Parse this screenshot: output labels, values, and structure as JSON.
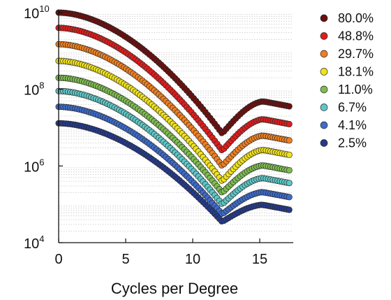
{
  "chart_data": {
    "type": "scatter",
    "title": "",
    "xlabel": "Cycles per Degree",
    "ylabel": "",
    "xlim": [
      0,
      17.5
    ],
    "ylim": [
      10000,
      10000000000
    ],
    "yscale": "log",
    "x_ticks": [
      "0",
      "5",
      "10",
      "15"
    ],
    "y_ticks": [
      {
        "base": "10",
        "exp": "4"
      },
      {
        "base": "10",
        "exp": "6"
      },
      {
        "base": "10",
        "exp": "8"
      },
      {
        "base": "10",
        "exp": "10"
      }
    ],
    "grid": "y-minor-dotted",
    "legend_position": "right",
    "series": [
      {
        "name": "80.0%",
        "color": "#6b0f0f",
        "start": 10000000000.0,
        "dip": 7000000.0,
        "end": 35000000.0
      },
      {
        "name": "48.8%",
        "color": "#e01c1c",
        "start": 4000000000.0,
        "dip": 2500000.0,
        "end": 12000000.0
      },
      {
        "name": "29.7%",
        "color": "#f07f1f",
        "start": 1500000000.0,
        "dip": 1000000.0,
        "end": 4500000.0
      },
      {
        "name": "18.1%",
        "color": "#f0e21a",
        "start": 550000000.0,
        "dip": 400000.0,
        "end": 1900000.0
      },
      {
        "name": "11.0%",
        "color": "#7dbd4f",
        "start": 200000000.0,
        "dip": 200000.0,
        "end": 750000.0
      },
      {
        "name": "6.7%",
        "color": "#5ec7c7",
        "start": 90000000.0,
        "dip": 100000.0,
        "end": 350000.0
      },
      {
        "name": "4.1%",
        "color": "#3d6bcb",
        "start": 35000000.0,
        "dip": 55000.0,
        "end": 150000.0
      },
      {
        "name": "2.5%",
        "color": "#243a8c",
        "start": 13000000.0,
        "dip": 35000.0,
        "end": 70000.0
      }
    ]
  }
}
